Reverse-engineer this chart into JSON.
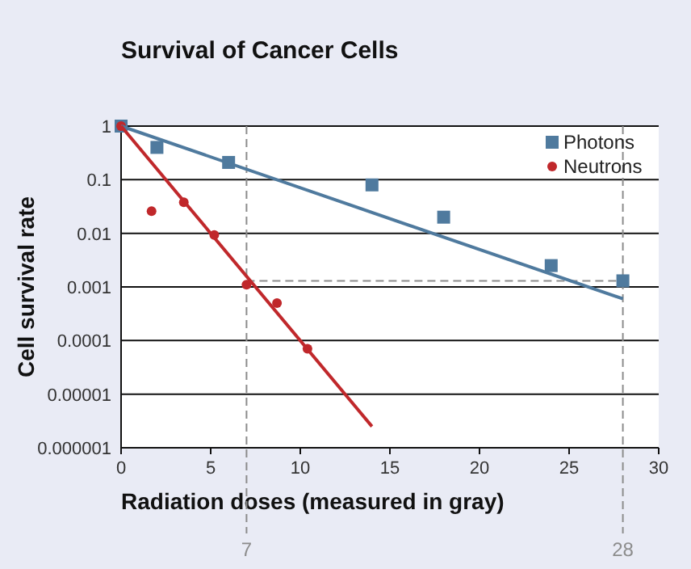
{
  "chart_data": {
    "type": "scatter",
    "title": "Survival of Cancer Cells",
    "xlabel": "Radiation doses (measured in gray)",
    "ylabel": "Cell survival rate",
    "log": "y",
    "xlim": [
      0,
      30
    ],
    "ylim": [
      1e-06,
      1
    ],
    "xticks": [
      0,
      5,
      10,
      15,
      20,
      25,
      30
    ],
    "yticks": [
      {
        "value": 1e-06,
        "label": "0.000001"
      },
      {
        "value": 1e-05,
        "label": "0.00001"
      },
      0.0001,
      0.001,
      0.01,
      0.1,
      1
    ],
    "grid": "y",
    "legend": "top right",
    "series": [
      {
        "name": "Photons",
        "color": "#4f7a9e",
        "marker": "square",
        "x": [
          0,
          2,
          6,
          14,
          18,
          24,
          28
        ],
        "values": [
          1,
          0.4,
          0.21,
          0.08,
          0.02,
          0.0025,
          0.0013
        ]
      },
      {
        "name": "Neutrons",
        "color": "#c0282b",
        "marker": "circle",
        "x": [
          0,
          1.7,
          3.5,
          5.2,
          7,
          8.7,
          10.4
        ],
        "values": [
          1,
          0.026,
          0.038,
          0.0093,
          0.0011,
          0.0005,
          7e-05
        ]
      },
      {
        "type": "line",
        "color": "#4f7a9e",
        "marker": "none",
        "x": [
          0,
          28
        ],
        "values": [
          1,
          0.0006
        ]
      },
      {
        "type": "line",
        "color": "#c0282b",
        "marker": "none",
        "x": [
          0,
          14
        ],
        "values": [
          1,
          2.5e-06
        ]
      }
    ],
    "ref_lines": [
      {
        "axis": "x",
        "value": 7,
        "label": "7",
        "color": "#8c8c8c",
        "line_style": "dashed"
      },
      {
        "axis": "x",
        "value": 28,
        "label": "28",
        "color": "#8c8c8c",
        "line_style": "dashed"
      },
      {
        "axis": "y",
        "value": 0.0013,
        "color": "#8c8c8c",
        "line_style": "dashed"
      }
    ]
  }
}
